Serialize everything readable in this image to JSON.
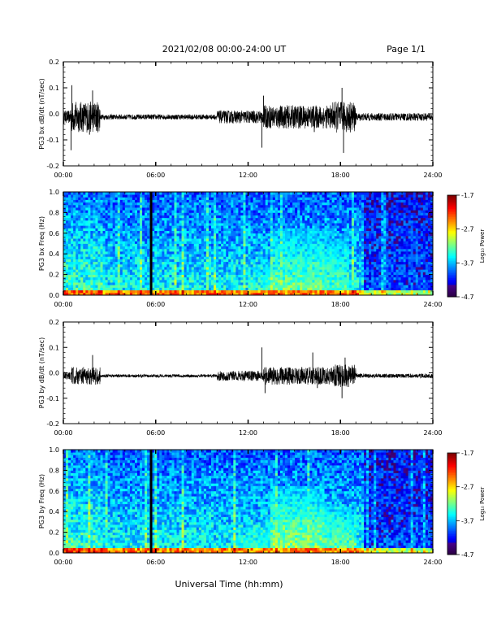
{
  "header": {
    "title": "2021/02/08  00:00-24:00 UT",
    "page": "Page 1/1"
  },
  "footer": {
    "xlabel": "Universal Time (hh:mm)"
  },
  "chart_data": [
    {
      "type": "line",
      "ylabel": "PG3 bx dB/dt (nT/sec)",
      "x_ticks": [
        "00:00",
        "06:00",
        "12:00",
        "18:00",
        "24:00"
      ],
      "xlim_hours": [
        0,
        24
      ],
      "ylim": [
        -0.2,
        0.2
      ],
      "y_ticks": [
        "0.2",
        "0.1",
        "0.0",
        "-0.1",
        "-0.2"
      ],
      "activity": [
        {
          "start_h": 0.0,
          "end_h": 0.5,
          "amp": 0.025
        },
        {
          "start_h": 0.5,
          "end_h": 2.4,
          "amp": 0.06
        },
        {
          "start_h": 2.4,
          "end_h": 10.0,
          "amp": 0.01
        },
        {
          "start_h": 10.0,
          "end_h": 13.0,
          "amp": 0.025
        },
        {
          "start_h": 13.0,
          "end_h": 17.5,
          "amp": 0.045
        },
        {
          "start_h": 17.5,
          "end_h": 19.0,
          "amp": 0.06
        },
        {
          "start_h": 19.0,
          "end_h": 24.0,
          "amp": 0.015
        }
      ],
      "spikes": [
        {
          "t": 0.5,
          "v": -0.14
        },
        {
          "t": 0.55,
          "v": 0.11
        },
        {
          "t": 1.9,
          "v": 0.09
        },
        {
          "t": 1.7,
          "v": -0.08
        },
        {
          "t": 12.9,
          "v": -0.13
        },
        {
          "t": 13.0,
          "v": 0.07
        },
        {
          "t": 18.1,
          "v": 0.1
        },
        {
          "t": 18.2,
          "v": -0.15
        },
        {
          "t": 16.3,
          "v": -0.07
        },
        {
          "t": 24.0,
          "v": 0.02
        }
      ],
      "color": "#000000"
    },
    {
      "type": "heatmap",
      "ylabel": "PG3 bx Freq (Hz)",
      "x_ticks": [
        "00:00",
        "06:00",
        "12:00",
        "18:00",
        "24:00"
      ],
      "xlim_hours": [
        0,
        24
      ],
      "ylim": [
        0.0,
        1.0
      ],
      "y_ticks": [
        "1.0",
        "0.8",
        "0.6",
        "0.4",
        "0.2",
        "0.0"
      ],
      "colorbar": {
        "label": "Log₁₀ Power",
        "ticks": [
          "-1.7",
          "-2.7",
          "-3.7",
          "-4.7"
        ],
        "range": [
          -4.7,
          -1.7
        ]
      },
      "gap_hours": 5.7,
      "bursts": [
        {
          "start_h": 12.0,
          "end_h": 14.0,
          "fmax": 0.35,
          "level": -3.2
        },
        {
          "start_h": 13.5,
          "end_h": 17.0,
          "fmax": 0.65,
          "level": -3.0
        },
        {
          "start_h": 17.0,
          "end_h": 18.5,
          "fmax": 0.6,
          "level": -3.1
        },
        {
          "start_h": 1.8,
          "end_h": 2.1,
          "fmax": 0.6,
          "level": -3.5
        }
      ]
    },
    {
      "type": "line",
      "ylabel": "PG3 by dB/dt (nT/sec)",
      "x_ticks": [
        "00:00",
        "06:00",
        "12:00",
        "18:00",
        "24:00"
      ],
      "xlim_hours": [
        0,
        24
      ],
      "ylim": [
        -0.2,
        0.2
      ],
      "y_ticks": [
        "0.2",
        "0.1",
        "0.0",
        "-0.1",
        "-0.2"
      ],
      "activity": [
        {
          "start_h": 0.0,
          "end_h": 0.5,
          "amp": 0.015
        },
        {
          "start_h": 0.5,
          "end_h": 2.4,
          "amp": 0.035
        },
        {
          "start_h": 2.4,
          "end_h": 10.0,
          "amp": 0.006
        },
        {
          "start_h": 10.0,
          "end_h": 13.0,
          "amp": 0.02
        },
        {
          "start_h": 13.0,
          "end_h": 17.5,
          "amp": 0.035
        },
        {
          "start_h": 17.5,
          "end_h": 19.0,
          "amp": 0.045
        },
        {
          "start_h": 19.0,
          "end_h": 24.0,
          "amp": 0.008
        }
      ],
      "spikes": [
        {
          "t": 1.9,
          "v": 0.07
        },
        {
          "t": 12.9,
          "v": 0.1
        },
        {
          "t": 13.1,
          "v": -0.08
        },
        {
          "t": 16.2,
          "v": 0.08
        },
        {
          "t": 18.1,
          "v": -0.1
        },
        {
          "t": 16.5,
          "v": -0.06
        },
        {
          "t": 18.3,
          "v": 0.06
        }
      ],
      "color": "#000000"
    },
    {
      "type": "heatmap",
      "ylabel": "PG3 by Freq (Hz)",
      "x_ticks": [
        "00:00",
        "06:00",
        "12:00",
        "18:00",
        "24:00"
      ],
      "xlim_hours": [
        0,
        24
      ],
      "ylim": [
        0.0,
        1.0
      ],
      "y_ticks": [
        "1.0",
        "0.8",
        "0.6",
        "0.4",
        "0.2",
        "0.0"
      ],
      "colorbar": {
        "label": "Log₁₀ Power",
        "ticks": [
          "-1.7",
          "-2.7",
          "-3.7",
          "-4.7"
        ],
        "range": [
          -4.7,
          -1.7
        ]
      },
      "gap_hours": 5.7,
      "bursts": [
        {
          "start_h": 11.0,
          "end_h": 14.0,
          "fmax": 0.3,
          "level": -3.2
        },
        {
          "start_h": 13.5,
          "end_h": 17.0,
          "fmax": 0.65,
          "level": -2.9
        },
        {
          "start_h": 17.0,
          "end_h": 19.0,
          "fmax": 0.45,
          "level": -3.0
        },
        {
          "start_h": 1.8,
          "end_h": 2.1,
          "fmax": 0.6,
          "level": -3.5
        }
      ]
    }
  ]
}
